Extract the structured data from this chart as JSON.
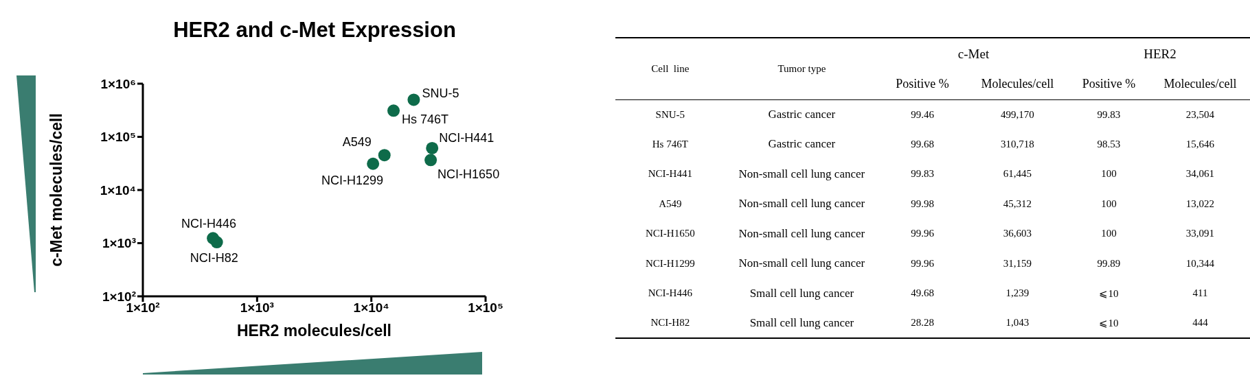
{
  "chart_data": [
    {
      "type": "scatter",
      "title": "HER2 and c-Met Expression",
      "xlabel": "HER2 molecules/cell",
      "ylabel": "c-Met molecules/cell",
      "x": [
        23504,
        15646,
        34061,
        13022,
        33091,
        10344,
        411,
        444
      ],
      "values": [
        499170,
        310718,
        61445,
        45312,
        36603,
        31159,
        1239,
        1043
      ],
      "color": "#0e6b4a",
      "marker": "circle",
      "log": "xy",
      "grid": false,
      "legend": false,
      "xlim": [
        100,
        100000
      ],
      "xticks": [
        {
          "value": 100,
          "label": "1×10²"
        },
        {
          "value": 1000,
          "label": "1×10³"
        },
        {
          "value": 10000,
          "label": "1×10⁴"
        },
        {
          "value": 100000,
          "label": "1×10⁵"
        }
      ],
      "ylim": [
        100,
        1000000
      ],
      "yticks": [
        {
          "value": 100,
          "label": "1×10²"
        },
        {
          "value": 1000,
          "label": "1×10³"
        },
        {
          "value": 10000,
          "label": "1×10⁴"
        },
        {
          "value": 100000,
          "label": "1×10⁵"
        },
        {
          "value": 1000000,
          "label": "1×10⁶"
        }
      ],
      "annotations": [
        {
          "text": "SNU-5",
          "x": 23504,
          "y": 499170
        },
        {
          "text": "Hs 746T",
          "x": 15646,
          "y": 310718
        },
        {
          "text": "NCI-H441",
          "x": 34061,
          "y": 61445
        },
        {
          "text": "A549",
          "x": 13022,
          "y": 45312
        },
        {
          "text": "NCI-H1650",
          "x": 33091,
          "y": 36603
        },
        {
          "text": "NCI-H1299",
          "x": 10344,
          "y": 31159
        },
        {
          "text": "NCI-H446",
          "x": 411,
          "y": 1239
        },
        {
          "text": "NCI-H82",
          "x": 444,
          "y": 1043
        }
      ]
    },
    {
      "type": "other",
      "annotations": [
        "Cell  line",
        "Tumor type",
        "c-Met",
        "HER2",
        "Positive %",
        "Molecules/cell",
        "Positive %",
        "Molecules/cell",
        "SNU-5",
        "Gastric cancer",
        "99.46",
        "499,170",
        "99.83",
        "23,504",
        "Hs 746T",
        "Gastric cancer",
        "99.68",
        "310,718",
        "98.53",
        "15,646",
        "NCI-H441",
        "Non-small cell lung cancer",
        "99.83",
        "61,445",
        "100",
        "34,061",
        "A549",
        "Non-small cell lung cancer",
        "99.98",
        "45,312",
        "100",
        "13,022",
        "NCI-H1650",
        "Non-small cell lung cancer",
        "99.96",
        "36,603",
        "100",
        "33,091",
        "NCI-H1299",
        "Non-small cell lung cancer",
        "99.96",
        "31,159",
        "99.89",
        "10,344",
        "NCI-H446",
        "Small cell lung cancer",
        "49.68",
        "1,239",
        "⩽10",
        "411",
        "NCI-H82",
        "Small cell lung cancer",
        "28.28",
        "1,043",
        "⩽10",
        "444"
      ]
    }
  ]
}
